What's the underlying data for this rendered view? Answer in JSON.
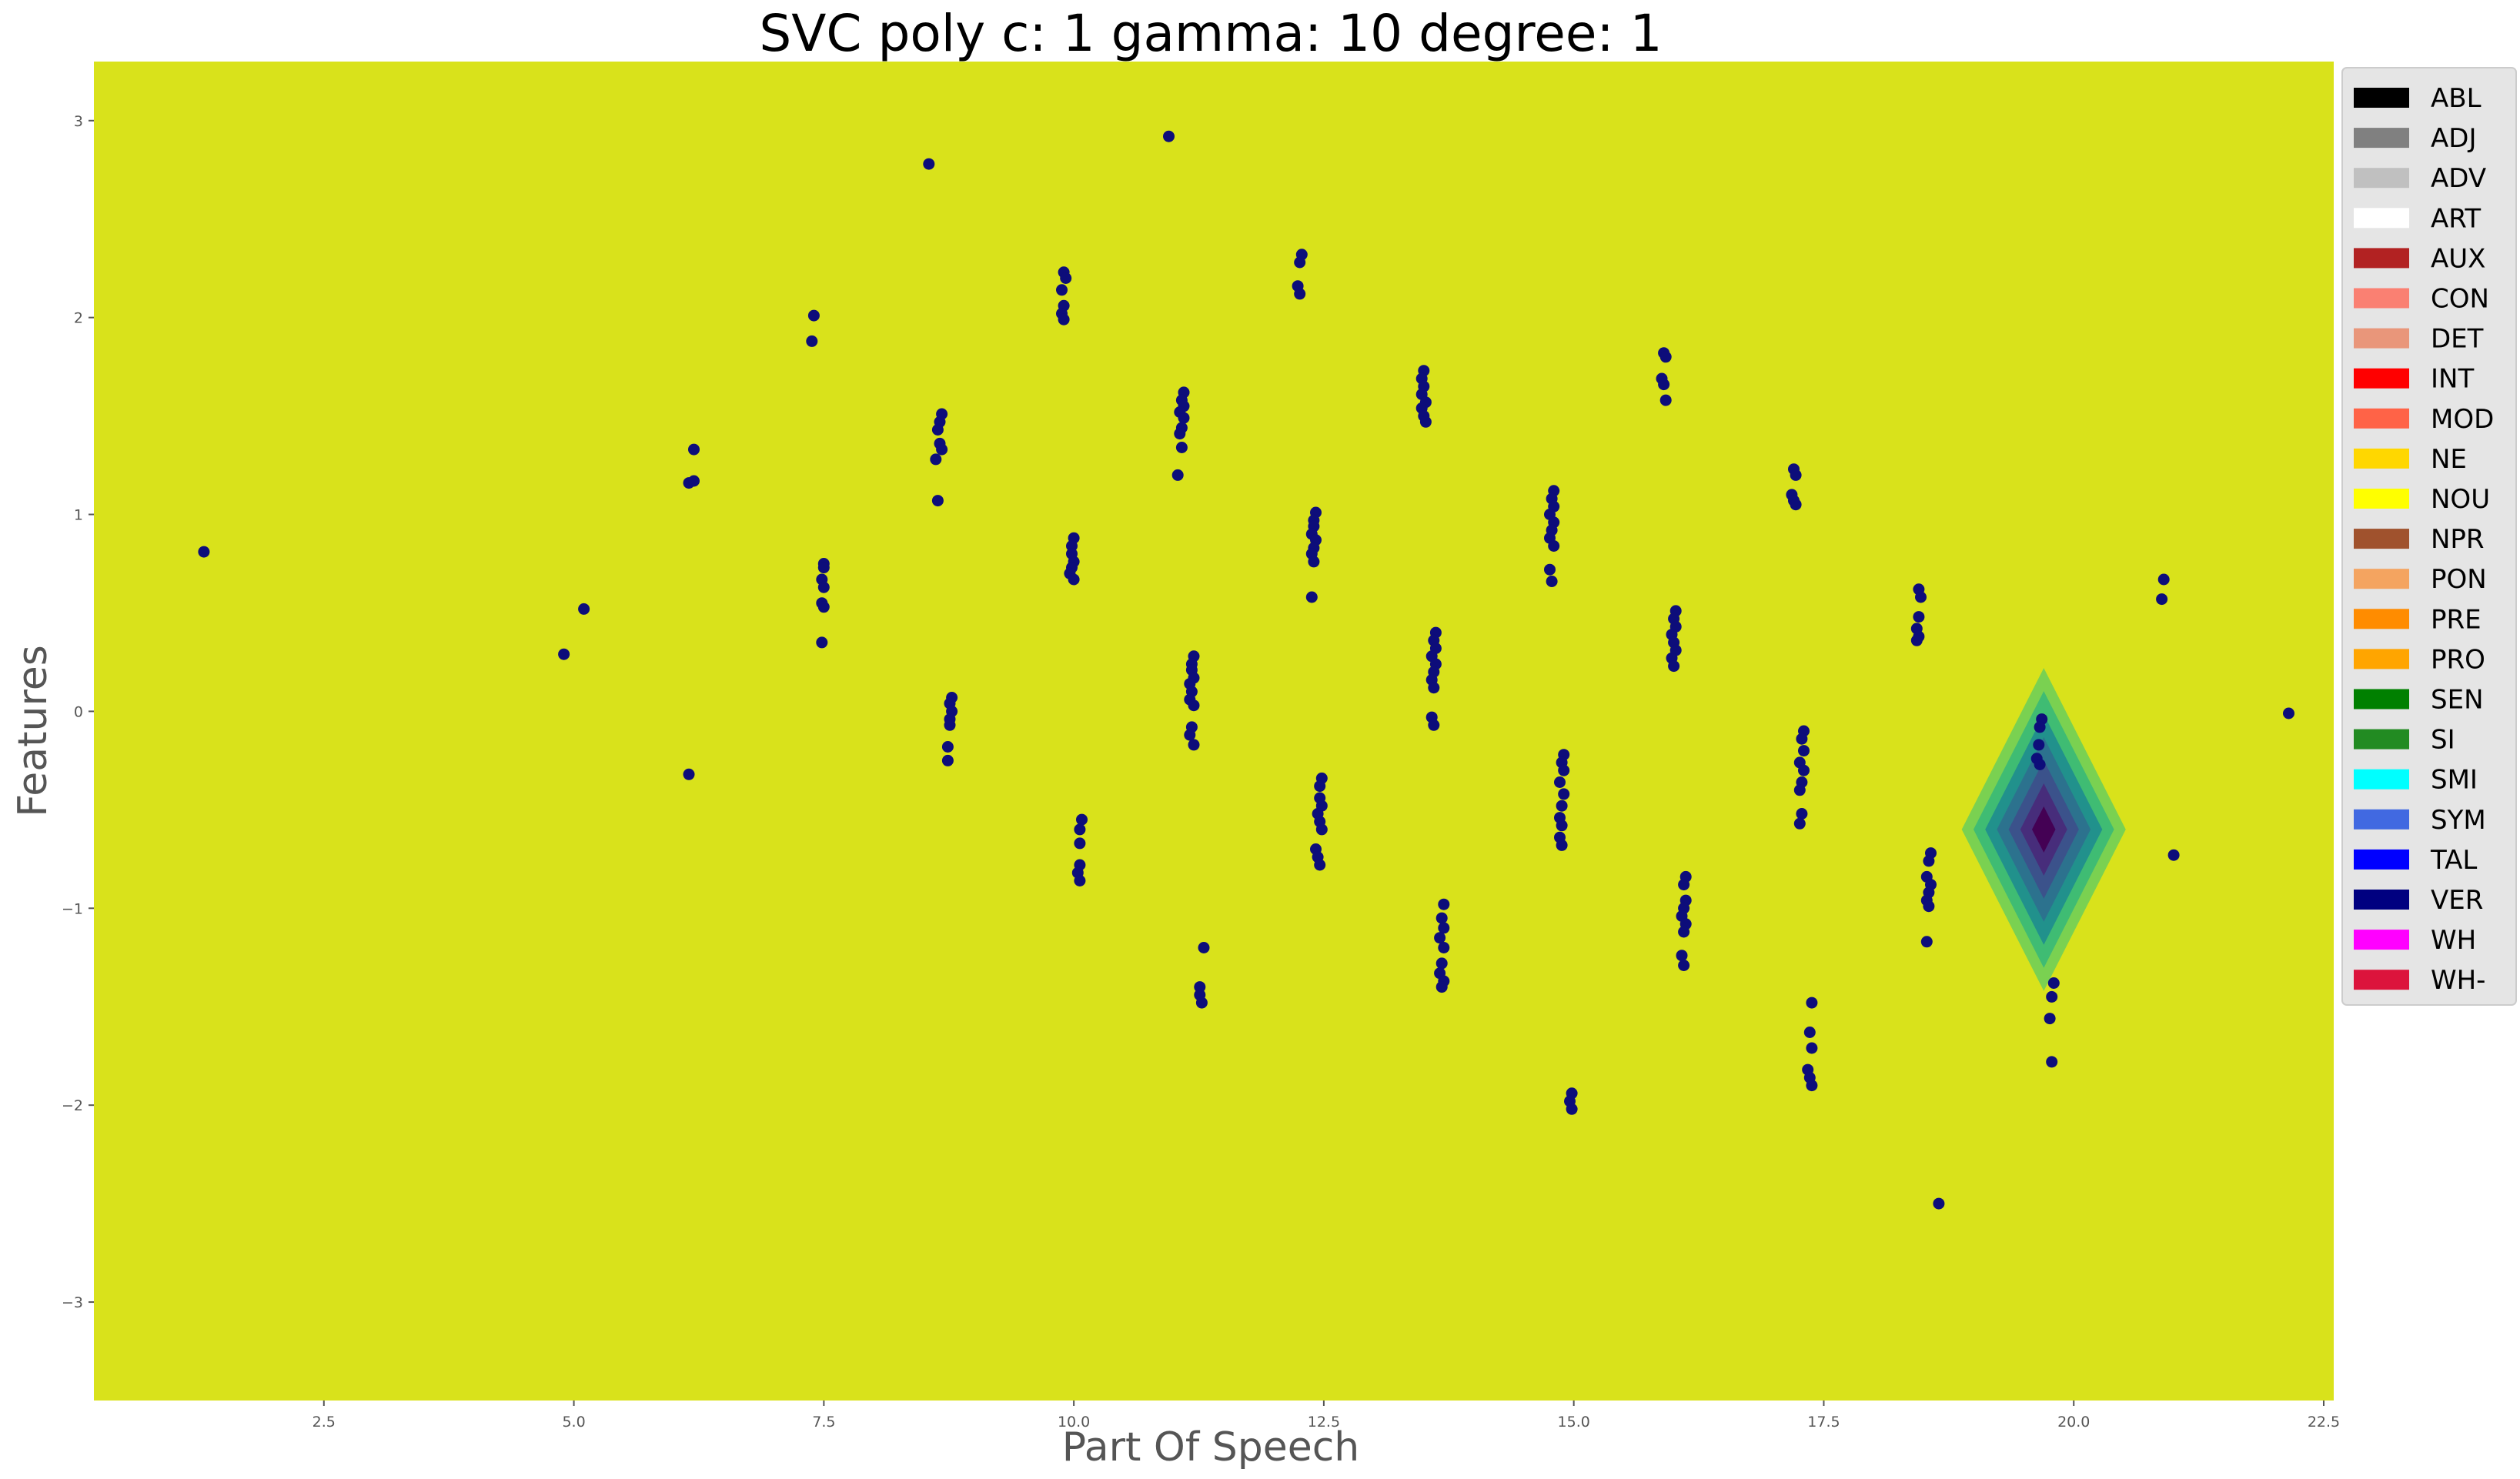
{
  "chart_data": {
    "type": "scatter",
    "title": "SVC poly c: 1 gamma: 10 degree: 1",
    "xlabel": "Part Of Speech",
    "ylabel": "Features",
    "xlim": [
      0.2,
      22.6
    ],
    "ylim": [
      -3.5,
      3.3
    ],
    "xticks": [
      2.5,
      5.0,
      7.5,
      10.0,
      12.5,
      15.0,
      17.5,
      20.0,
      22.5
    ],
    "xtick_labels": [
      "2.5",
      "5.0",
      "7.5",
      "10.0",
      "12.5",
      "15.0",
      "17.5",
      "20.0",
      "22.5"
    ],
    "yticks": [
      3,
      2,
      1,
      0,
      -1,
      -2,
      -3
    ],
    "ytick_labels": [
      "3",
      "2",
      "1",
      "0",
      "−1",
      "−2",
      "−3"
    ],
    "background_color": "#d9e21b",
    "point_color": "#0d0d7a",
    "grid": false,
    "legend_position": "right, outside plot",
    "legend": [
      {
        "label": "ABL",
        "color": "#000000"
      },
      {
        "label": "ADJ",
        "color": "#808080"
      },
      {
        "label": "ADV",
        "color": "#c0c0c0"
      },
      {
        "label": "ART",
        "color": "#ffffff"
      },
      {
        "label": "AUX",
        "color": "#b22222"
      },
      {
        "label": "CON",
        "color": "#fa8072"
      },
      {
        "label": "DET",
        "color": "#e9967a"
      },
      {
        "label": "INT",
        "color": "#ff0000"
      },
      {
        "label": "MOD",
        "color": "#ff6347"
      },
      {
        "label": "NE",
        "color": "#ffd700"
      },
      {
        "label": "NOU",
        "color": "#ffff00"
      },
      {
        "label": "NPR",
        "color": "#a0522d"
      },
      {
        "label": "PON",
        "color": "#f4a460"
      },
      {
        "label": "PRE",
        "color": "#ff8c00"
      },
      {
        "label": "PRO",
        "color": "#ffa500"
      },
      {
        "label": "SEN",
        "color": "#008000"
      },
      {
        "label": "SI",
        "color": "#228b22"
      },
      {
        "label": "SMI",
        "color": "#00ffff"
      },
      {
        "label": "SYM",
        "color": "#4169e1"
      },
      {
        "label": "TAL",
        "color": "#0000ff"
      },
      {
        "label": "VER",
        "color": "#000080"
      },
      {
        "label": "WH",
        "color": "#ff00ff"
      },
      {
        "label": "WH-",
        "color": "#dc143c"
      }
    ],
    "region": {
      "center": [
        19.7,
        -0.6
      ],
      "half_width_x": 0.82,
      "half_height_y": 0.82,
      "levels": [
        "#7ad151",
        "#3fbc73",
        "#21918c",
        "#2c728e",
        "#3b528b",
        "#472d7b",
        "#440154"
      ]
    },
    "points": [
      [
        1.3,
        0.81
      ],
      [
        4.9,
        0.29
      ],
      [
        5.1,
        0.52
      ],
      [
        6.2,
        1.33
      ],
      [
        6.15,
        1.16
      ],
      [
        6.2,
        1.17
      ],
      [
        6.15,
        -0.32
      ],
      [
        7.4,
        2.01
      ],
      [
        7.38,
        1.88
      ],
      [
        7.5,
        0.75
      ],
      [
        7.5,
        0.73
      ],
      [
        7.48,
        0.67
      ],
      [
        7.5,
        0.63
      ],
      [
        7.48,
        0.55
      ],
      [
        7.5,
        0.53
      ],
      [
        7.48,
        0.35
      ],
      [
        8.55,
        2.78
      ],
      [
        8.68,
        1.51
      ],
      [
        8.66,
        1.47
      ],
      [
        8.64,
        1.43
      ],
      [
        8.66,
        1.36
      ],
      [
        8.68,
        1.33
      ],
      [
        8.62,
        1.28
      ],
      [
        8.64,
        1.07
      ],
      [
        8.78,
        0.07
      ],
      [
        8.76,
        0.04
      ],
      [
        8.78,
        0.0
      ],
      [
        8.76,
        -0.04
      ],
      [
        8.76,
        -0.07
      ],
      [
        8.74,
        -0.18
      ],
      [
        8.74,
        -0.25
      ],
      [
        9.9,
        2.23
      ],
      [
        9.92,
        2.2
      ],
      [
        9.88,
        2.14
      ],
      [
        9.9,
        2.06
      ],
      [
        9.88,
        2.02
      ],
      [
        9.9,
        1.99
      ],
      [
        10.0,
        0.88
      ],
      [
        9.98,
        0.84
      ],
      [
        9.98,
        0.8
      ],
      [
        10.0,
        0.76
      ],
      [
        9.98,
        0.73
      ],
      [
        9.96,
        0.7
      ],
      [
        10.0,
        0.67
      ],
      [
        10.08,
        -0.55
      ],
      [
        10.06,
        -0.6
      ],
      [
        10.06,
        -0.67
      ],
      [
        10.06,
        -0.78
      ],
      [
        10.04,
        -0.82
      ],
      [
        10.06,
        -0.86
      ],
      [
        10.95,
        2.92
      ],
      [
        11.1,
        1.62
      ],
      [
        11.08,
        1.58
      ],
      [
        11.1,
        1.55
      ],
      [
        11.06,
        1.52
      ],
      [
        11.1,
        1.49
      ],
      [
        11.08,
        1.44
      ],
      [
        11.06,
        1.41
      ],
      [
        11.08,
        1.34
      ],
      [
        11.04,
        1.2
      ],
      [
        11.2,
        0.28
      ],
      [
        11.18,
        0.24
      ],
      [
        11.18,
        0.21
      ],
      [
        11.2,
        0.17
      ],
      [
        11.16,
        0.14
      ],
      [
        11.18,
        0.1
      ],
      [
        11.16,
        0.06
      ],
      [
        11.2,
        0.03
      ],
      [
        11.18,
        -0.08
      ],
      [
        11.16,
        -0.12
      ],
      [
        11.2,
        -0.17
      ],
      [
        11.3,
        -1.2
      ],
      [
        11.26,
        -1.4
      ],
      [
        11.26,
        -1.44
      ],
      [
        11.28,
        -1.48
      ],
      [
        12.28,
        2.32
      ],
      [
        12.26,
        2.28
      ],
      [
        12.24,
        2.16
      ],
      [
        12.26,
        2.12
      ],
      [
        12.42,
        1.01
      ],
      [
        12.4,
        0.97
      ],
      [
        12.4,
        0.94
      ],
      [
        12.38,
        0.9
      ],
      [
        12.42,
        0.87
      ],
      [
        12.4,
        0.83
      ],
      [
        12.38,
        0.8
      ],
      [
        12.4,
        0.76
      ],
      [
        12.38,
        0.58
      ],
      [
        12.48,
        -0.34
      ],
      [
        12.46,
        -0.38
      ],
      [
        12.46,
        -0.44
      ],
      [
        12.48,
        -0.48
      ],
      [
        12.44,
        -0.52
      ],
      [
        12.46,
        -0.56
      ],
      [
        12.48,
        -0.6
      ],
      [
        12.42,
        -0.7
      ],
      [
        12.44,
        -0.74
      ],
      [
        12.46,
        -0.78
      ],
      [
        13.5,
        1.73
      ],
      [
        13.48,
        1.69
      ],
      [
        13.5,
        1.65
      ],
      [
        13.48,
        1.61
      ],
      [
        13.52,
        1.57
      ],
      [
        13.48,
        1.54
      ],
      [
        13.5,
        1.5
      ],
      [
        13.52,
        1.47
      ],
      [
        13.62,
        0.4
      ],
      [
        13.6,
        0.36
      ],
      [
        13.62,
        0.32
      ],
      [
        13.58,
        0.28
      ],
      [
        13.62,
        0.24
      ],
      [
        13.6,
        0.2
      ],
      [
        13.58,
        0.16
      ],
      [
        13.6,
        0.12
      ],
      [
        13.58,
        -0.03
      ],
      [
        13.6,
        -0.07
      ],
      [
        13.7,
        -0.98
      ],
      [
        13.68,
        -1.05
      ],
      [
        13.7,
        -1.1
      ],
      [
        13.66,
        -1.15
      ],
      [
        13.7,
        -1.2
      ],
      [
        13.68,
        -1.28
      ],
      [
        13.66,
        -1.33
      ],
      [
        13.7,
        -1.37
      ],
      [
        13.68,
        -1.4
      ],
      [
        14.8,
        1.12
      ],
      [
        14.78,
        1.08
      ],
      [
        14.8,
        1.04
      ],
      [
        14.76,
        1.0
      ],
      [
        14.8,
        0.96
      ],
      [
        14.78,
        0.92
      ],
      [
        14.76,
        0.88
      ],
      [
        14.8,
        0.84
      ],
      [
        14.76,
        0.72
      ],
      [
        14.78,
        0.66
      ],
      [
        14.9,
        -0.22
      ],
      [
        14.88,
        -0.26
      ],
      [
        14.9,
        -0.3
      ],
      [
        14.86,
        -0.36
      ],
      [
        14.9,
        -0.42
      ],
      [
        14.88,
        -0.48
      ],
      [
        14.86,
        -0.54
      ],
      [
        14.88,
        -0.58
      ],
      [
        14.86,
        -0.64
      ],
      [
        14.88,
        -0.68
      ],
      [
        14.98,
        -1.94
      ],
      [
        14.96,
        -1.98
      ],
      [
        14.98,
        -2.02
      ],
      [
        15.9,
        1.82
      ],
      [
        15.92,
        1.8
      ],
      [
        15.88,
        1.69
      ],
      [
        15.9,
        1.66
      ],
      [
        15.92,
        1.58
      ],
      [
        16.02,
        0.51
      ],
      [
        16.0,
        0.47
      ],
      [
        16.02,
        0.43
      ],
      [
        15.98,
        0.39
      ],
      [
        16.0,
        0.35
      ],
      [
        16.02,
        0.31
      ],
      [
        15.98,
        0.27
      ],
      [
        16.0,
        0.23
      ],
      [
        16.12,
        -0.84
      ],
      [
        16.1,
        -0.88
      ],
      [
        16.12,
        -0.96
      ],
      [
        16.1,
        -1.0
      ],
      [
        16.08,
        -1.04
      ],
      [
        16.12,
        -1.08
      ],
      [
        16.1,
        -1.12
      ],
      [
        16.08,
        -1.24
      ],
      [
        16.1,
        -1.29
      ],
      [
        17.2,
        1.23
      ],
      [
        17.22,
        1.2
      ],
      [
        17.18,
        1.1
      ],
      [
        17.2,
        1.07
      ],
      [
        17.22,
        1.05
      ],
      [
        17.3,
        -0.1
      ],
      [
        17.28,
        -0.14
      ],
      [
        17.3,
        -0.2
      ],
      [
        17.26,
        -0.26
      ],
      [
        17.3,
        -0.3
      ],
      [
        17.28,
        -0.36
      ],
      [
        17.26,
        -0.4
      ],
      [
        17.28,
        -0.52
      ],
      [
        17.26,
        -0.57
      ],
      [
        17.38,
        -1.48
      ],
      [
        17.36,
        -1.63
      ],
      [
        17.38,
        -1.71
      ],
      [
        17.34,
        -1.82
      ],
      [
        17.36,
        -1.86
      ],
      [
        17.38,
        -1.9
      ],
      [
        18.45,
        0.62
      ],
      [
        18.47,
        0.58
      ],
      [
        18.45,
        0.48
      ],
      [
        18.43,
        0.42
      ],
      [
        18.45,
        0.38
      ],
      [
        18.43,
        0.36
      ],
      [
        18.57,
        -0.72
      ],
      [
        18.55,
        -0.76
      ],
      [
        18.53,
        -0.84
      ],
      [
        18.57,
        -0.88
      ],
      [
        18.55,
        -0.92
      ],
      [
        18.53,
        -0.96
      ],
      [
        18.55,
        -0.99
      ],
      [
        18.53,
        -1.17
      ],
      [
        18.65,
        -2.5
      ],
      [
        19.68,
        -0.04
      ],
      [
        19.66,
        -0.08
      ],
      [
        19.65,
        -0.17
      ],
      [
        19.63,
        -0.24
      ],
      [
        19.66,
        -0.27
      ],
      [
        19.8,
        -1.38
      ],
      [
        19.78,
        -1.45
      ],
      [
        19.76,
        -1.56
      ],
      [
        19.78,
        -1.78
      ],
      [
        20.9,
        0.67
      ],
      [
        20.88,
        0.57
      ],
      [
        21.0,
        -0.73
      ],
      [
        22.15,
        -0.01
      ]
    ]
  }
}
